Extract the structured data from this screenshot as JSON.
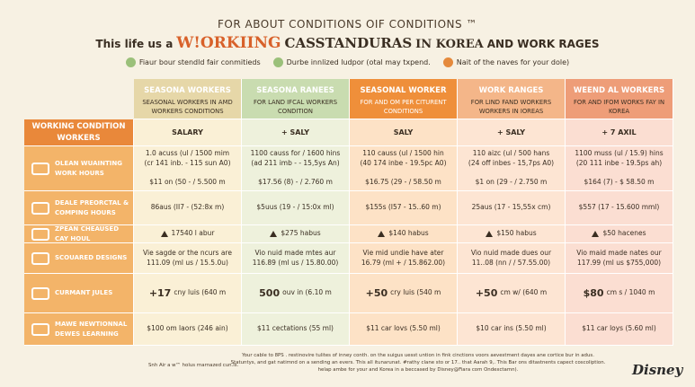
{
  "header": {
    "kicker": "FOR ABOUT CONDITIONS OIF CONDITIONS ™",
    "title_parts": [
      "This life us a",
      "W!ORKIING",
      "CASSTANDURAS",
      "IN KOREA",
      "AND WORK RAGES"
    ]
  },
  "legend": [
    "Fiaur bour stendld fair conmitieds",
    "Durbe innlized ludpor (otal may txpend.",
    "Nait of the naves for your dole)"
  ],
  "table": {
    "corner": "WORKING CONDITION WORKERS",
    "columns": [
      {
        "title": "SEASONA WORKERS",
        "sub": "SEASONAL WORKERS IN AMD WORKERS CONDITIONS"
      },
      {
        "title": "SEASONA RANEES",
        "sub": "FOR LAND IFCAL WORKERS CONDITION"
      },
      {
        "title": "SEASONAL WORKER",
        "sub": "FOR AND OM PER CITURENT CONDITIONS"
      },
      {
        "title": "WORK RANGES",
        "sub": "FOR LIND FAND WORKERS WORKERS IN IOREAS"
      },
      {
        "title": "WEEND AL WORKERS",
        "sub": "FOR AND IFOM WORKS FAY IN KOREA"
      }
    ],
    "salary": [
      "SALARY",
      "+ SALY",
      "SALY",
      "+ SALY",
      "+ 7 AXIL"
    ],
    "rows": [
      {
        "label": "OLEAN WUAINTING WORK HOURS",
        "cells": [
          [
            "1.0 acuss (ul / 1500 mim",
            "(cr 141 inb. - 115 sun A0)",
            "$11 on (50 - / 5.500 m"
          ],
          [
            "1100 causs for / 1600 hins",
            "(ad 211 imb - - 15,5ys An)",
            "$17.56 (8) - / 2.760 m"
          ],
          [
            "110 causs (ul / 1500 hin",
            "(40 174 inbe - 19.5pc A0)",
            "$16.75 (29 - / 58.50 m"
          ],
          [
            "110 aizc (ul / 500 hans",
            "(24 off inbes - 15,7ps A0)",
            "$1 on (29 - / 2.750 m"
          ],
          [
            "1100 muss (ul / 15.9) hins",
            "(20 111 inbe - 19.5ps ah)",
            "$164 (7) - $ 58.50 m"
          ]
        ]
      },
      {
        "label": "DEALE PREORCTAL & COMPING HOURS",
        "cells": [
          [
            "86aus (II7 - (52:8x m)"
          ],
          [
            "$5uus (19 - / 15:0x ml)"
          ],
          [
            "$155s (I57 - 15..60 m)"
          ],
          [
            "25aus (17 - 15,55x cm)"
          ],
          [
            "$557 (17 - 15.600 mml)"
          ]
        ]
      },
      {
        "label": "ZPEAN CHEAUSED CAY HOUL",
        "cells": [
          [
            "17540 l abur"
          ],
          [
            "$275 habus"
          ],
          [
            "$140 habus"
          ],
          [
            "$150 habus"
          ],
          [
            "$50 hacenes"
          ]
        ]
      },
      {
        "label": "SCOUARED DESIGNS",
        "cells": [
          [
            "Vie sagde or the ncurs are",
            "111.09 (ml us / 15.5.0u)"
          ],
          [
            "Vio nuid made mtes aur",
            "116.89 (ml us / 15.80.00)"
          ],
          [
            "Vie mid undie have ater",
            "16.79 (ml + / 15.862.00)"
          ],
          [
            "Vio nuid made dues our",
            "11..08 (nn / / 57.55.00)"
          ],
          [
            "Vio maid made nates our",
            "117.99 (ml us $755,000)"
          ]
        ]
      },
      {
        "label": "CURMANT JULES",
        "cells": [
          [
            "+17",
            "cny luis (640 m"
          ],
          [
            "500",
            "ouv in (6.10 m"
          ],
          [
            "+50",
            "cry luis (540 m"
          ],
          [
            "+50",
            "cm w/ (640 m"
          ],
          [
            "$80",
            "cm s / 1040 m"
          ]
        ]
      },
      {
        "label": "MAWE NEWTIONNAL DEWES LEARNING",
        "cells": [
          [
            "$100 om laors (246 ain)"
          ],
          [
            "$11 cectations (55 ml)"
          ],
          [
            "$11 car lovs (5.50 ml)"
          ],
          [
            "$10 car ins (5.50 ml)"
          ],
          [
            "$11 car loys (5.60 ml)"
          ]
        ]
      }
    ]
  },
  "footer": {
    "left": "Snh Air a w™ holus rnarnazed cun.ls.",
    "lines": [
      "Your cable to 8PS . restinovire tulites of inney conth. on the suigus uesst untion in fink cinctions voors aevestment dayes ane cortice bur in adus.",
      "Statuntys, and gat natimnd on a sending an evers. This all itunarunat. #rathy clane sto or 17.. that Aarah 9,. This Bar ons ditastnents capect coscoliption.",
      "helap ambe for your and Korea in a beccased by Disney@Fiara com Ondexctamn)."
    ],
    "logo": "Disney"
  }
}
